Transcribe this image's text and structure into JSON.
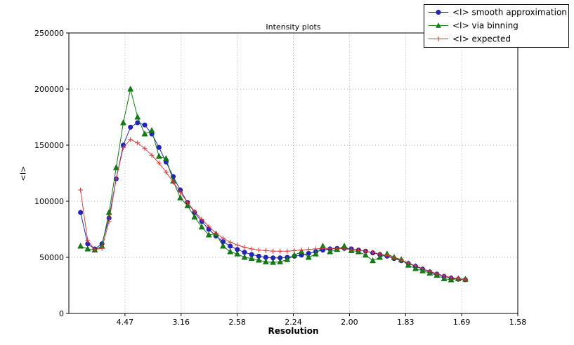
{
  "page": {
    "background": "#ffffff"
  },
  "chart_data": {
    "type": "line",
    "title": "Intensity plots",
    "xlabel": "Resolution",
    "ylabel": "<I>",
    "grid": true,
    "legend_position": "top-right",
    "x_range": [
      0,
      0.4
    ],
    "y_range": [
      0,
      250000
    ],
    "x_ticks": [
      {
        "value": 0.05,
        "label": "4.47"
      },
      {
        "value": 0.1,
        "label": "3.16"
      },
      {
        "value": 0.15,
        "label": "2.58"
      },
      {
        "value": 0.2,
        "label": "2.24"
      },
      {
        "value": 0.25,
        "label": "2.00"
      },
      {
        "value": 0.3,
        "label": "1.83"
      },
      {
        "value": 0.35,
        "label": "1.69"
      },
      {
        "value": 0.4,
        "label": "1.58"
      }
    ],
    "y_ticks": [
      {
        "value": 0,
        "label": "0"
      },
      {
        "value": 50000,
        "label": "50000"
      },
      {
        "value": 100000,
        "label": "100000"
      },
      {
        "value": 150000,
        "label": "150000"
      },
      {
        "value": 200000,
        "label": "200000"
      },
      {
        "value": 250000,
        "label": "250000"
      }
    ],
    "x": [
      0.0104,
      0.0168,
      0.0231,
      0.0295,
      0.0358,
      0.0422,
      0.0485,
      0.0549,
      0.0612,
      0.0676,
      0.0739,
      0.0803,
      0.0866,
      0.093,
      0.0993,
      0.1057,
      0.112,
      0.1184,
      0.1247,
      0.1311,
      0.1374,
      0.1438,
      0.1501,
      0.1565,
      0.1628,
      0.1692,
      0.1755,
      0.1819,
      0.1882,
      0.1946,
      0.2009,
      0.2073,
      0.2136,
      0.22,
      0.2263,
      0.2327,
      0.239,
      0.2454,
      0.2517,
      0.2581,
      0.2644,
      0.2708,
      0.2771,
      0.2835,
      0.2898,
      0.2962,
      0.3025,
      0.3089,
      0.3152,
      0.3216,
      0.3279,
      0.3343,
      0.3406,
      0.347,
      0.3533
    ],
    "series": [
      {
        "name": "<I> smooth approximation",
        "marker": "circle",
        "color": "#2222cc",
        "values": [
          90000,
          62000,
          57500,
          62000,
          85000,
          120000,
          150000,
          166000,
          170000,
          168000,
          160000,
          148000,
          135000,
          122000,
          110000,
          99000,
          90000,
          82000,
          75000,
          69000,
          64000,
          60000,
          57000,
          54500,
          52500,
          51000,
          50000,
          49500,
          49500,
          50000,
          51000,
          52000,
          53500,
          55000,
          56500,
          57500,
          58000,
          58000,
          57500,
          56500,
          55500,
          54000,
          52500,
          51000,
          49000,
          47000,
          44500,
          42000,
          39500,
          37000,
          35000,
          33000,
          31500,
          30500,
          30000
        ]
      },
      {
        "name": "<I> via binning",
        "marker": "triangle",
        "color": "#0f7f0f",
        "values": [
          60000,
          57500,
          56500,
          60000,
          90000,
          130000,
          170000,
          200000,
          175000,
          160000,
          163000,
          140000,
          138000,
          118000,
          103000,
          96000,
          86000,
          77000,
          70000,
          71000,
          60000,
          55000,
          53000,
          50000,
          49000,
          47500,
          46000,
          45500,
          46000,
          48000,
          52000,
          55000,
          50000,
          53000,
          60000,
          55000,
          57000,
          60000,
          56000,
          55000,
          52000,
          47000,
          50000,
          53000,
          50000,
          48000,
          43000,
          40000,
          38000,
          36000,
          34000,
          31000,
          30000,
          31000,
          30500
        ]
      },
      {
        "name": "<I> expected",
        "marker": "plus",
        "color": "#e03030",
        "values": [
          110000,
          65000,
          57000,
          58000,
          82000,
          120000,
          148000,
          155000,
          152000,
          147000,
          141000,
          134000,
          126000,
          117000,
          108000,
          99000,
          91000,
          84000,
          77500,
          71500,
          67000,
          63500,
          61000,
          59000,
          57500,
          56500,
          56000,
          55500,
          55500,
          55500,
          56000,
          56500,
          57000,
          57500,
          58000,
          58000,
          58000,
          57500,
          57000,
          56500,
          55500,
          54500,
          53000,
          51500,
          49500,
          47500,
          45000,
          42500,
          40000,
          37500,
          35500,
          33500,
          32000,
          31000,
          30000
        ]
      }
    ]
  }
}
